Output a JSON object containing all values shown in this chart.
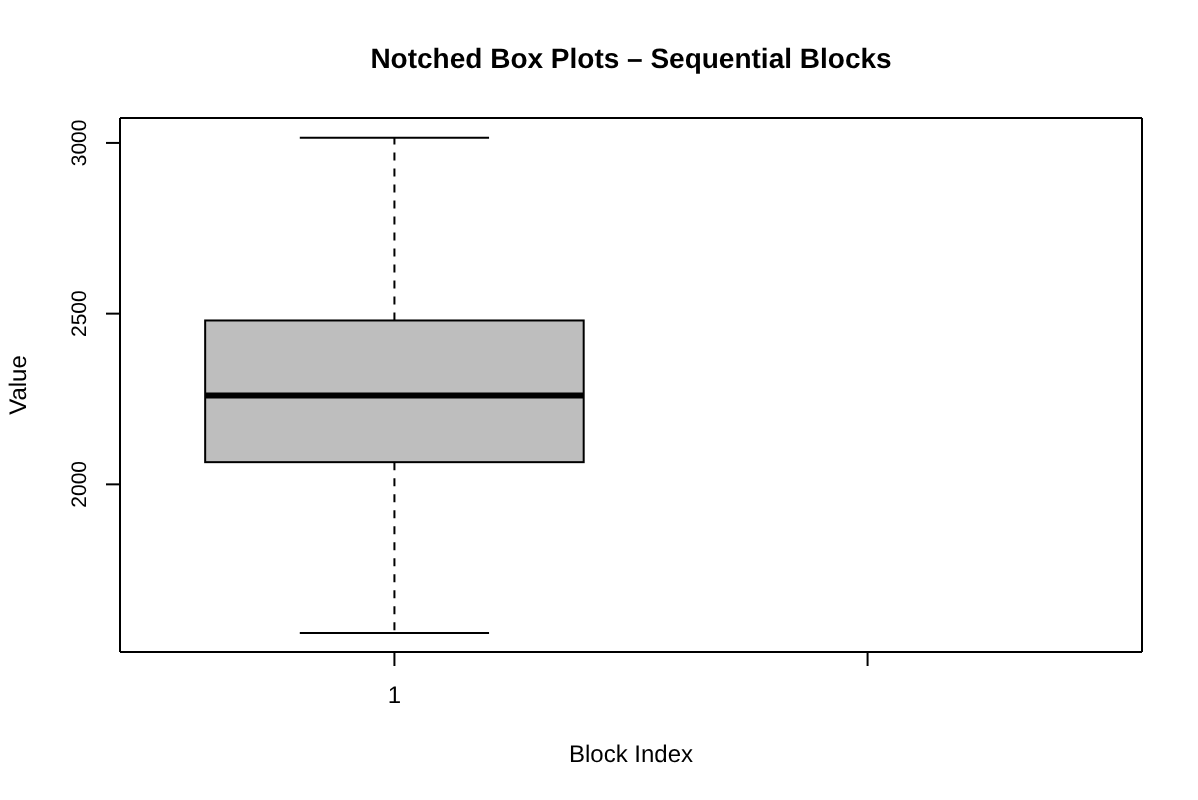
{
  "chart_data": {
    "type": "box",
    "title": "Notched Box Plots – Sequential Blocks",
    "xlabel": "Block Index",
    "ylabel": "Value",
    "categories": [
      "1",
      null
    ],
    "boxes": [
      {
        "low": 1565,
        "q1": 2065,
        "median": 2260,
        "q3": 2480,
        "high": 3015
      },
      null
    ],
    "color": "#bebebe",
    "ylim": [
      1509,
      3073
    ],
    "yticks": [
      2000,
      2500,
      3000
    ]
  }
}
